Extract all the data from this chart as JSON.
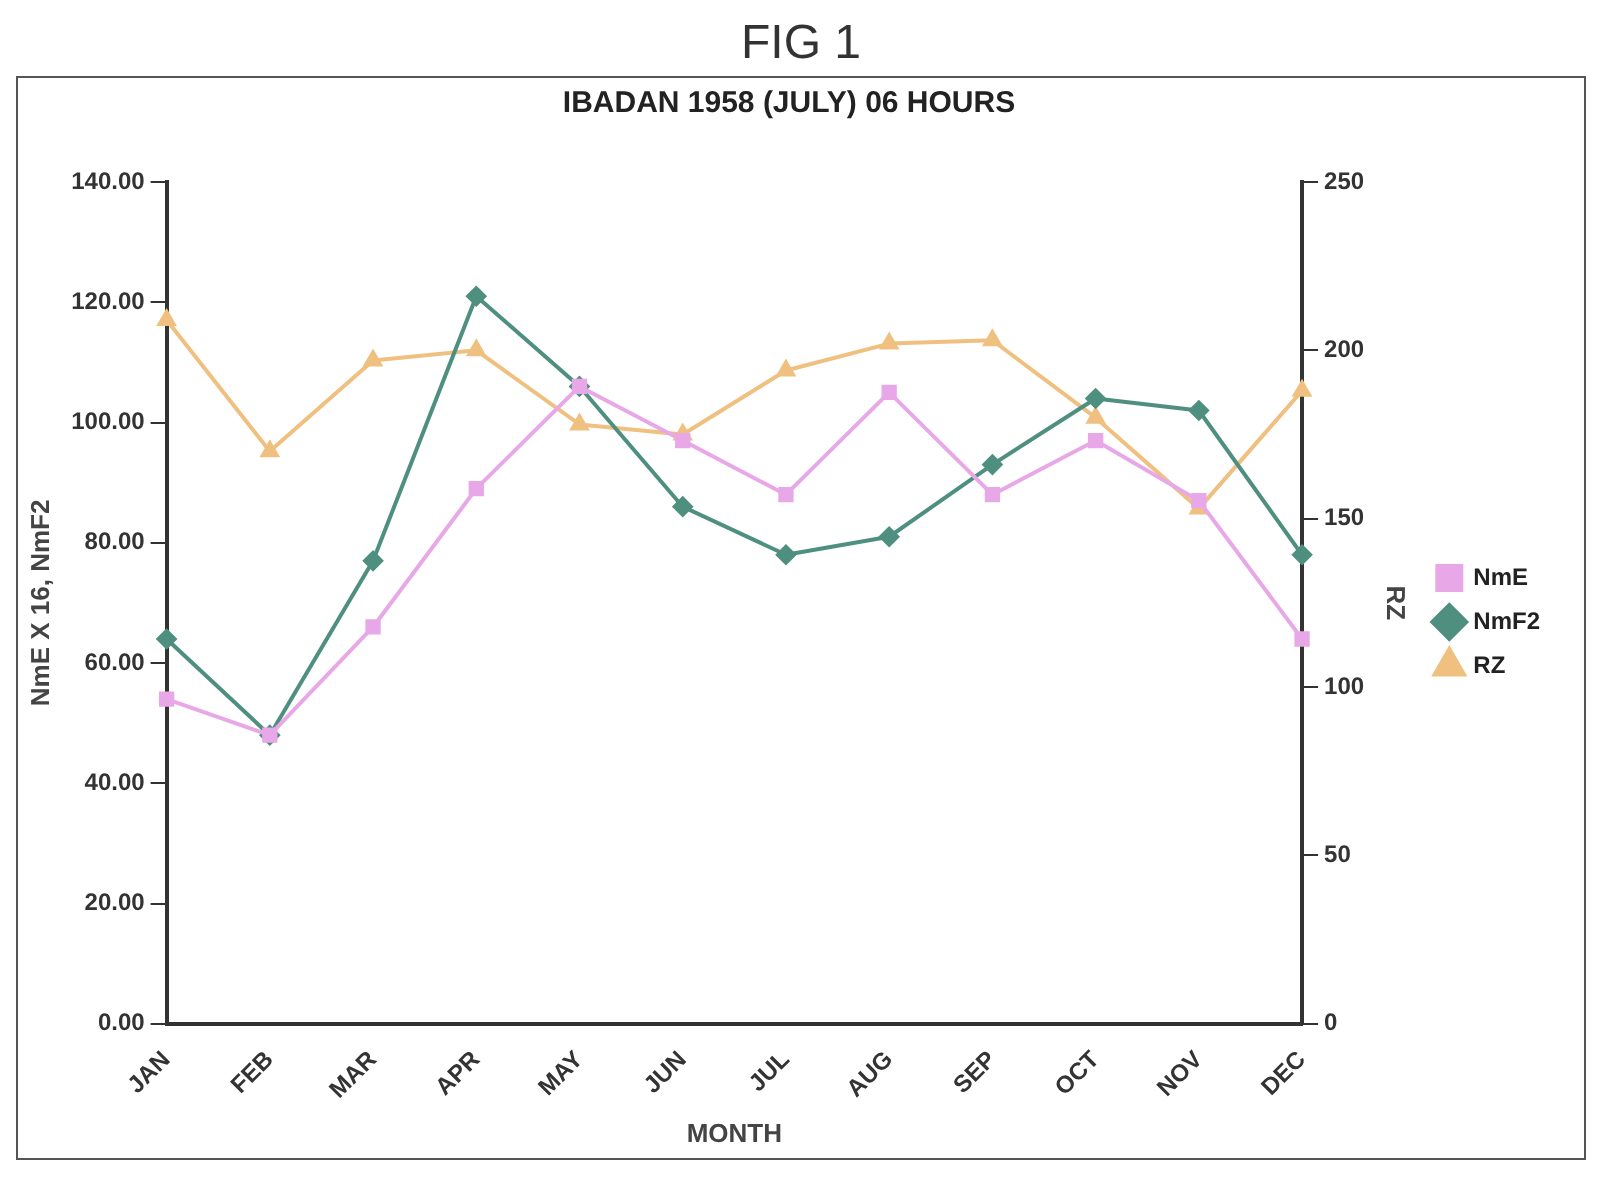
{
  "chart_data": {
    "type": "line",
    "title": "IBADAN 1958 (JULY) 06 HOURS",
    "xlabel": "MONTH",
    "ylabel": "NmE X 16, NmF2",
    "y2label": "RZ",
    "annotations": [
      "FIG 1"
    ],
    "categories": [
      "JAN",
      "FEB",
      "MAR",
      "APR",
      "MAY",
      "JUN",
      "JUL",
      "AUG",
      "SEP",
      "OCT",
      "NOV",
      "DEC"
    ],
    "series": [
      {
        "name": "NmE",
        "color": "#e8a8e8",
        "marker": "square",
        "values": [
          54,
          48,
          66,
          89,
          106,
          97,
          88,
          105,
          88,
          97,
          87,
          64
        ]
      },
      {
        "name": "NmF2",
        "color": "#4f8f80",
        "marker": "diamond",
        "values": [
          64,
          48,
          77,
          121,
          106,
          86,
          78,
          81,
          93,
          104,
          102,
          78
        ]
      },
      {
        "name": "RZ",
        "color": "#f0c080",
        "marker": "triangle",
        "axis": "y2",
        "values": [
          209,
          170,
          197,
          200,
          178,
          175,
          194,
          202,
          203,
          180,
          153,
          188
        ]
      }
    ],
    "ylim": [
      0,
      140
    ],
    "yticks": [
      {
        "value": 0,
        "label": "0.00"
      },
      {
        "value": 20,
        "label": "20.00"
      },
      {
        "value": 40,
        "label": "40.00"
      },
      {
        "value": 60,
        "label": "60.00"
      },
      {
        "value": 80,
        "label": "80.00"
      },
      {
        "value": 100,
        "label": "100.00"
      },
      {
        "value": 120,
        "label": "120.00"
      },
      {
        "value": 140,
        "label": "140.00"
      }
    ],
    "y2lim": [
      0,
      250
    ],
    "y2ticks": [
      0,
      50,
      100,
      150,
      200,
      250
    ],
    "grid": false,
    "legend": "right",
    "line_style": "solid"
  }
}
